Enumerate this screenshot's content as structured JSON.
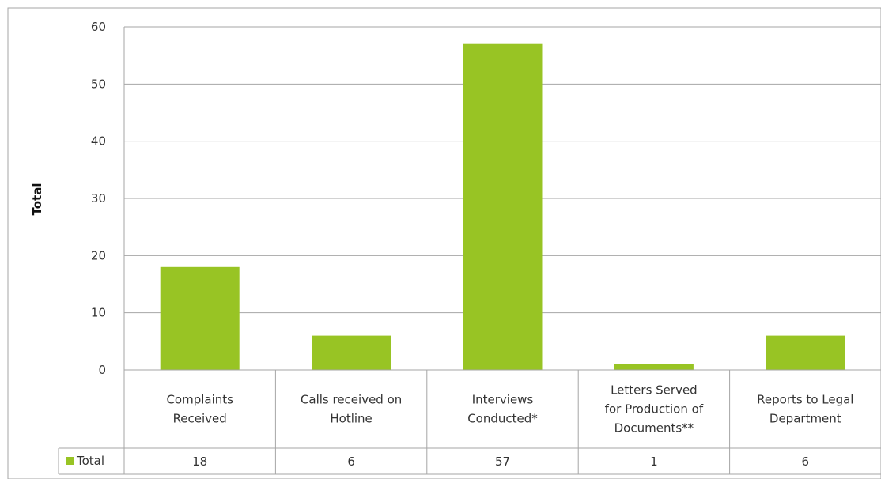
{
  "chart_data": {
    "type": "bar",
    "categories": [
      [
        "Complaints",
        "Received"
      ],
      [
        "Calls received on",
        "Hotline"
      ],
      [
        "Interviews",
        "Conducted*"
      ],
      [
        "Letters Served",
        "for Production of",
        "Documents**"
      ],
      [
        "Reports to Legal",
        "Department"
      ]
    ],
    "series": [
      {
        "name": "Total",
        "values": [
          18,
          6,
          57,
          1,
          6
        ]
      }
    ],
    "ylabel": "Total",
    "ylim": [
      0,
      60
    ],
    "yticks": [
      0,
      10,
      20,
      30,
      40,
      50,
      60
    ],
    "grid": true,
    "data_table": true,
    "legend": "data-table-left",
    "colors": {
      "bar": "#98C424",
      "grid": "#A6A6A6",
      "frame": "#A6A6A6"
    }
  }
}
